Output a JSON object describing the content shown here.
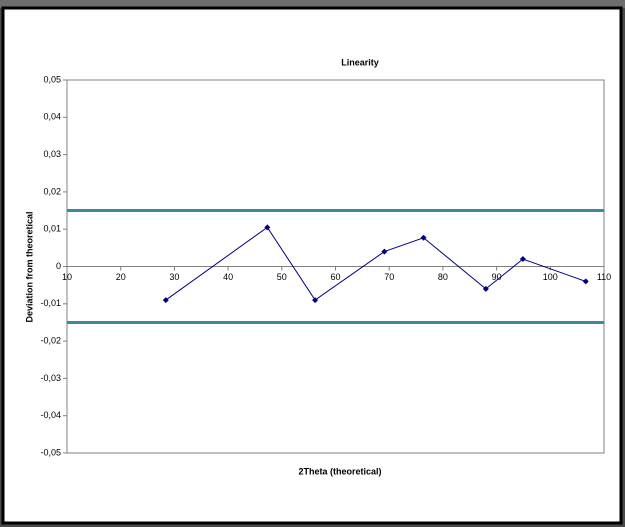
{
  "chart_data": {
    "type": "line",
    "title": "Linearity",
    "x_label": "2Theta (theoretical)",
    "y_label": "Deviation from theoretical",
    "x": [
      28.4,
      47.3,
      56.2,
      69.1,
      76.4,
      88.0,
      94.9,
      106.6
    ],
    "series": [
      {
        "color": "#000080",
        "values": [
          -0.009,
          0.0105,
          -0.009,
          0.004,
          0.0077,
          -0.006,
          0.002,
          -0.004
        ]
      }
    ],
    "hlines": [
      {
        "value": 0.015,
        "color": "#3b8a9c"
      },
      {
        "value": -0.015,
        "color": "#3b8a9c"
      }
    ],
    "xlim": [
      10,
      110
    ],
    "xticks": [
      10,
      20,
      30,
      40,
      50,
      60,
      70,
      80,
      90,
      100,
      110
    ],
    "ylim": [
      -0.05,
      0.05
    ],
    "yticks": [
      {
        "value": -0.05,
        "label": "-0,05"
      },
      {
        "value": -0.04,
        "label": "-0,04"
      },
      {
        "value": -0.03,
        "label": "-0,03"
      },
      {
        "value": -0.02,
        "label": "-0,02"
      },
      {
        "value": -0.01,
        "label": "-0,01"
      },
      0,
      {
        "value": 0.01,
        "label": "0,01"
      },
      {
        "value": 0.02,
        "label": "0,02"
      },
      {
        "value": 0.03,
        "label": "0,03"
      },
      {
        "value": 0.04,
        "label": "0,04"
      },
      {
        "value": 0.05,
        "label": "0,05"
      }
    ]
  }
}
